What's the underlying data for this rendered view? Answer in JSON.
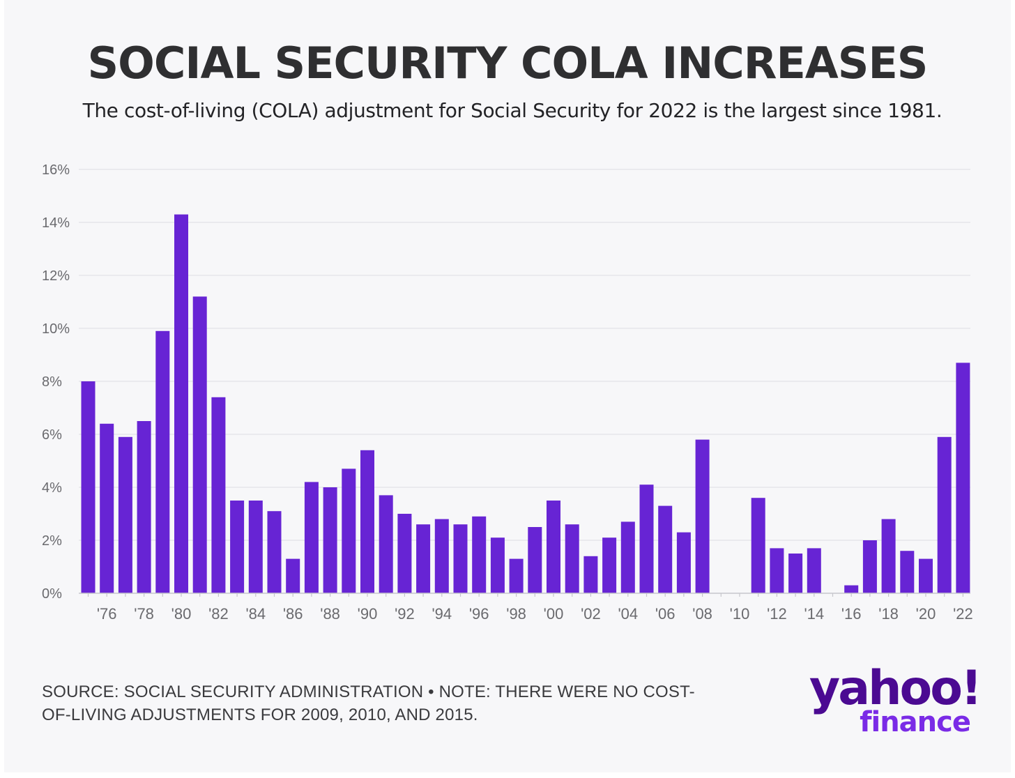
{
  "title": "SOCIAL SECURITY COLA INCREASES",
  "subtitle": "The cost-of-living (COLA) adjustment for Social Security for 2022 is the largest since 1981.",
  "footnote_line1": "SOURCE: SOCIAL SECURITY ADMINISTRATION • NOTE: THERE WERE NO COST-",
  "footnote_line2": "OF-LIVING ADJUSTMENTS FOR 2009, 2010, AND 2015.",
  "logo": {
    "wordmark": "yahoo!",
    "subbrand": "finance"
  },
  "colors": {
    "bar": "#6724d4",
    "grid": "#e6e6ea",
    "axis": "#c6c6cc",
    "logo_primary": "#4b0a92",
    "logo_secondary": "#7a2be6"
  },
  "chart_data": {
    "type": "bar",
    "title": "SOCIAL SECURITY COLA INCREASES",
    "subtitle": "The cost-of-living (COLA) adjustment for Social Security for 2022 is the largest since 1981.",
    "xlabel": "",
    "ylabel": "",
    "ylim": [
      0,
      16
    ],
    "yticks": [
      "0%",
      "2%",
      "4%",
      "6%",
      "8%",
      "10%",
      "12%",
      "14%",
      "16%"
    ],
    "ytick_values": [
      0,
      2,
      4,
      6,
      8,
      10,
      12,
      14,
      16
    ],
    "grid": true,
    "legend": "none",
    "categories": [
      "1975",
      "1976",
      "1977",
      "1978",
      "1979",
      "1980",
      "1981",
      "1982",
      "1983",
      "1984",
      "1985",
      "1986",
      "1987",
      "1988",
      "1989",
      "1990",
      "1991",
      "1992",
      "1993",
      "1994",
      "1995",
      "1996",
      "1997",
      "1998",
      "1999",
      "2000",
      "2001",
      "2002",
      "2003",
      "2004",
      "2005",
      "2006",
      "2007",
      "2008",
      "2009",
      "2010",
      "2011",
      "2012",
      "2013",
      "2014",
      "2015",
      "2016",
      "2017",
      "2018",
      "2019",
      "2020",
      "2021",
      "2022"
    ],
    "values": [
      8.0,
      6.4,
      5.9,
      6.5,
      9.9,
      14.3,
      11.2,
      7.4,
      3.5,
      3.5,
      3.1,
      1.3,
      4.2,
      4.0,
      4.7,
      5.4,
      3.7,
      3.0,
      2.6,
      2.8,
      2.6,
      2.9,
      2.1,
      1.3,
      2.5,
      3.5,
      2.6,
      1.4,
      2.1,
      2.7,
      4.1,
      3.3,
      2.3,
      5.8,
      0,
      0,
      3.6,
      1.7,
      1.5,
      1.7,
      0,
      0.3,
      2.0,
      2.8,
      1.6,
      1.3,
      5.9,
      8.7
    ],
    "xtick_labels": [
      "'76",
      "'78",
      "'80",
      "'82",
      "'84",
      "'86",
      "'88",
      "'90",
      "'92",
      "'94",
      "'96",
      "'98",
      "'00",
      "'02",
      "'04",
      "'06",
      "'08",
      "'10",
      "'12",
      "'14",
      "'16",
      "'18",
      "'20",
      "'22"
    ],
    "xtick_categories": [
      "1976",
      "1978",
      "1980",
      "1982",
      "1984",
      "1986",
      "1988",
      "1990",
      "1992",
      "1994",
      "1996",
      "1998",
      "2000",
      "2002",
      "2004",
      "2006",
      "2008",
      "2010",
      "2012",
      "2014",
      "2016",
      "2018",
      "2020",
      "2022"
    ]
  }
}
